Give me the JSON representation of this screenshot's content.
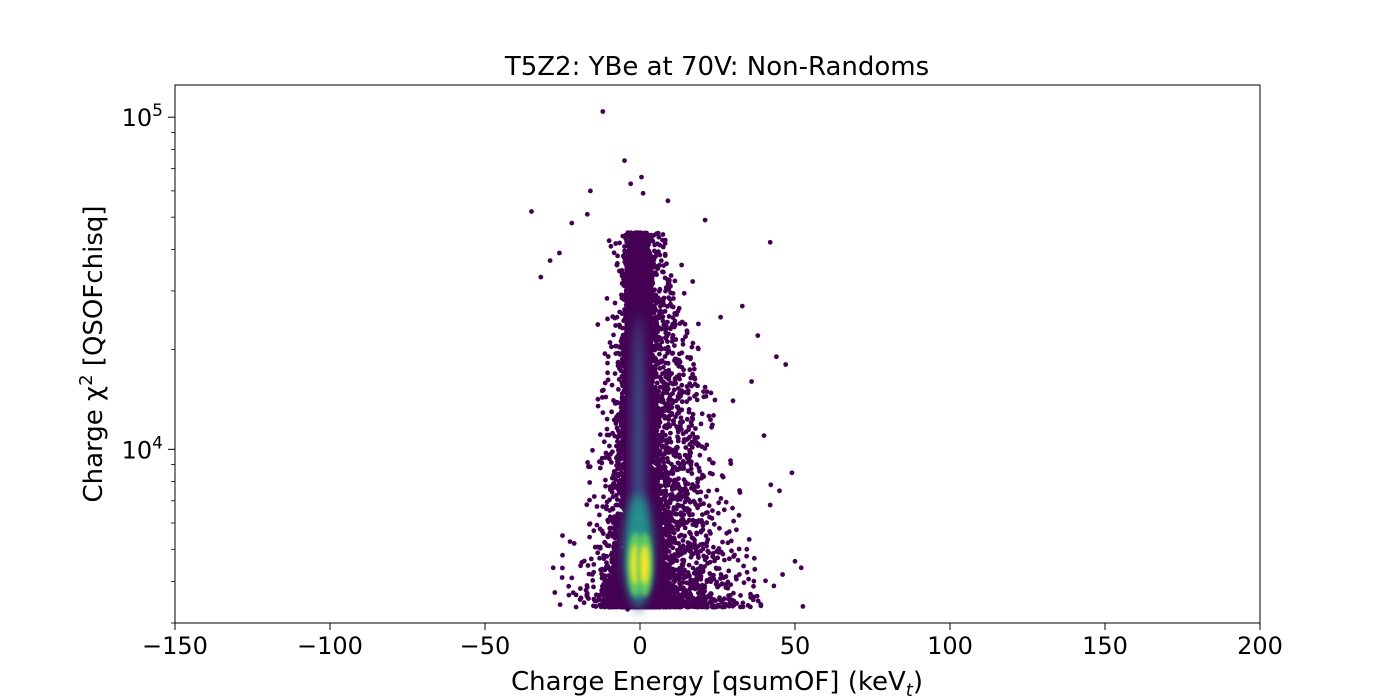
{
  "chart_data": {
    "type": "scatter",
    "title": "T5Z2: YBe at 70V: Non-Randoms",
    "xlabel": "Charge Energy [qsumOF] (keV",
    "xlabel_sub": "t",
    "xlabel_close": ")",
    "ylabel": "Charge χ",
    "ylabel_sup": "2",
    "ylabel_rest": " [QSOFchisq]",
    "xlim": [
      -150,
      200
    ],
    "ylim": [
      3000,
      125000
    ],
    "y_scale": "log",
    "grid": false,
    "x_ticks": [
      -150,
      -100,
      -50,
      0,
      50,
      100,
      150,
      200
    ],
    "x_tick_labels": [
      "−150",
      "−100",
      "−50",
      "0",
      "50",
      "100",
      "150",
      "200"
    ],
    "y_ticks": [
      {
        "value": 10000,
        "base": "10",
        "exp": "4"
      },
      {
        "value": 100000,
        "base": "10",
        "exp": "5"
      }
    ],
    "colormap": [
      "#440154",
      "#3b528b",
      "#21918c",
      "#5ec962",
      "#fde725"
    ],
    "density_core": {
      "x_center": -0.5,
      "lobes": [
        {
          "x": -1.5,
          "y": 4500
        },
        {
          "x": 1.5,
          "y": 4500
        }
      ],
      "y_min": 3350,
      "y_max": 45000
    },
    "outlier_points": [
      {
        "x": -12,
        "y": 104000
      },
      {
        "x": -5,
        "y": 74000
      },
      {
        "x": 0.5,
        "y": 66000
      },
      {
        "x": -3,
        "y": 63000
      },
      {
        "x": -16,
        "y": 60000
      },
      {
        "x": 9,
        "y": 56000
      },
      {
        "x": 1,
        "y": 59000
      },
      {
        "x": -35,
        "y": 52000
      },
      {
        "x": -17,
        "y": 51000
      },
      {
        "x": 21,
        "y": 49000
      },
      {
        "x": -22,
        "y": 48000
      },
      {
        "x": 42,
        "y": 42000
      },
      {
        "x": -26,
        "y": 39000
      },
      {
        "x": -29,
        "y": 37000
      },
      {
        "x": -32,
        "y": 33000
      },
      {
        "x": 17,
        "y": 32000
      },
      {
        "x": 33,
        "y": 27000
      },
      {
        "x": 26,
        "y": 25000
      },
      {
        "x": 38,
        "y": 22000
      },
      {
        "x": 44,
        "y": 19000
      },
      {
        "x": 47,
        "y": 18000
      },
      {
        "x": 36,
        "y": 16000
      },
      {
        "x": 30,
        "y": 14000
      },
      {
        "x": 40,
        "y": 11000
      },
      {
        "x": 49,
        "y": 8500
      },
      {
        "x": 45,
        "y": 7500
      },
      {
        "x": 42,
        "y": 6800
      },
      {
        "x": 52,
        "y": 4400
      },
      {
        "x": 50,
        "y": 4600
      },
      {
        "x": 46,
        "y": 4200
      },
      {
        "x": -28,
        "y": 4400
      },
      {
        "x": -22,
        "y": 4100
      },
      {
        "x": -25,
        "y": 4800
      },
      {
        "x": 13,
        "y": 3450
      },
      {
        "x": 18,
        "y": 3380
      },
      {
        "x": -4,
        "y": 3300
      }
    ]
  }
}
